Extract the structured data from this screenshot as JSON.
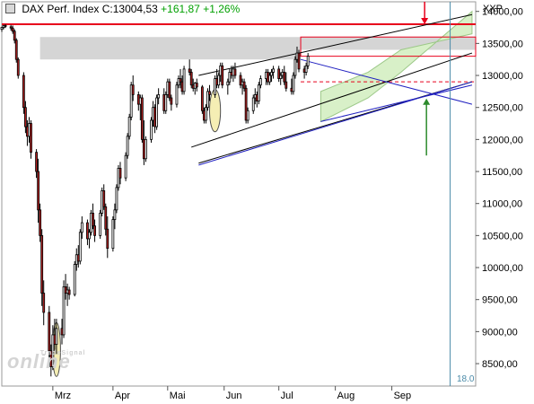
{
  "header": {
    "index_name": "DAX Perf. Index",
    "close": "C:13004,53",
    "change": "+161,87",
    "change_pct": "+1,26%"
  },
  "unit_label": "XXP",
  "watermark": "online",
  "watermark_small": "TradeSignal",
  "vline_label": "18.0",
  "colors": {
    "resistance": "#e8001c",
    "channel_fill": "#d8f0c8",
    "trend_blue": "#2020c0",
    "arrow_green": "#2c8a2c",
    "zone_gray": "#d0d0d0",
    "highlight": "#f5eeb0",
    "vline": "#4a8aa8"
  },
  "chart_data": {
    "type": "candlestick",
    "title": "DAX Perf. Index",
    "ylim": [
      8150,
      14150
    ],
    "y_ticks": [
      8500,
      9000,
      9500,
      10000,
      10500,
      11000,
      11500,
      12000,
      12500,
      13000,
      13500,
      14000
    ],
    "y_tick_labels": [
      "8500,00",
      "9000,00",
      "9500,00",
      "10000,00",
      "10500,00",
      "11000,00",
      "11500,00",
      "12000,00",
      "12500,00",
      "13000,00",
      "13500,00",
      "14000,00"
    ],
    "x_labels": [
      {
        "label": "Mrz",
        "day": 28
      },
      {
        "label": "Apr",
        "day": 61
      },
      {
        "label": "Mai",
        "day": 91
      },
      {
        "label": "Jun",
        "day": 122
      },
      {
        "label": "Jul",
        "day": 152
      },
      {
        "label": "Aug",
        "day": 183
      },
      {
        "label": "Sep",
        "day": 214
      }
    ],
    "x_range_days": [
      0,
      260
    ],
    "resistance": 13800,
    "gray_zone": [
      13250,
      13600
    ],
    "gray_zone_right": [
      13400,
      13600
    ],
    "red_box_level": 13300,
    "dashed_support": 12900,
    "vline_day": 246,
    "candles": [
      [
        0,
        13720,
        13760,
        13680,
        13750
      ],
      [
        1,
        13750,
        13790,
        13720,
        13780
      ],
      [
        2,
        13780,
        13800,
        13740,
        13770
      ],
      [
        5,
        13760,
        13790,
        13700,
        13740
      ],
      [
        6,
        13740,
        13780,
        13650,
        13690
      ],
      [
        7,
        13690,
        13720,
        13500,
        13550
      ],
      [
        8,
        13550,
        13580,
        13200,
        13250
      ],
      [
        9,
        13250,
        13280,
        12950,
        13000
      ],
      [
        12,
        13000,
        13050,
        12400,
        12500
      ],
      [
        13,
        12500,
        12600,
        12100,
        12200
      ],
      [
        14,
        12200,
        12300,
        11900,
        12050
      ],
      [
        15,
        12050,
        12350,
        11950,
        12250
      ],
      [
        16,
        12250,
        12300,
        11700,
        11800
      ],
      [
        19,
        11800,
        11850,
        11400,
        11500
      ],
      [
        20,
        11500,
        11700,
        10700,
        10900
      ],
      [
        21,
        10900,
        11000,
        10400,
        10500
      ],
      [
        22,
        10500,
        10600,
        9400,
        9600
      ],
      [
        23,
        9600,
        9800,
        9100,
        9300
      ],
      [
        26,
        9300,
        9400,
        8500,
        8700
      ],
      [
        27,
        8700,
        8800,
        8300,
        8450
      ],
      [
        28,
        8450,
        9100,
        8400,
        8950
      ],
      [
        29,
        8950,
        9200,
        8700,
        8800
      ],
      [
        30,
        8800,
        9200,
        8650,
        9050
      ],
      [
        33,
        9050,
        9200,
        8800,
        8950
      ],
      [
        34,
        8950,
        9800,
        8900,
        9700
      ],
      [
        35,
        9700,
        9900,
        9500,
        9600
      ],
      [
        36,
        9600,
        9750,
        9400,
        9650
      ],
      [
        37,
        9650,
        9700,
        9500,
        9580
      ],
      [
        40,
        9580,
        10100,
        9550,
        10050
      ],
      [
        41,
        10050,
        10300,
        9950,
        10200
      ],
      [
        42,
        10200,
        10350,
        10000,
        10100
      ],
      [
        43,
        10100,
        10600,
        10050,
        10550
      ],
      [
        44,
        10550,
        10800,
        10450,
        10700
      ],
      [
        47,
        10700,
        10750,
        10350,
        10450
      ],
      [
        48,
        10450,
        10600,
        10300,
        10550
      ],
      [
        49,
        10550,
        10900,
        10500,
        10850
      ],
      [
        50,
        10850,
        11000,
        10600,
        10650
      ],
      [
        51,
        10650,
        10750,
        10400,
        10500
      ],
      [
        54,
        10500,
        10900,
        10450,
        10850
      ],
      [
        55,
        10850,
        11250,
        10800,
        11200
      ],
      [
        56,
        11200,
        11300,
        10900,
        10950
      ],
      [
        57,
        10950,
        11000,
        10500,
        10600
      ],
      [
        58,
        10600,
        10800,
        10150,
        10300
      ],
      [
        61,
        10300,
        10800,
        10250,
        10750
      ],
      [
        62,
        10750,
        11000,
        10600,
        10900
      ],
      [
        63,
        10900,
        11300,
        10850,
        11250
      ],
      [
        64,
        11250,
        11600,
        11200,
        11550
      ],
      [
        65,
        11550,
        11650,
        11300,
        11400
      ],
      [
        68,
        11400,
        11800,
        11350,
        11750
      ],
      [
        69,
        11750,
        12100,
        11700,
        12050
      ],
      [
        70,
        12050,
        12400,
        12000,
        12350
      ],
      [
        71,
        12350,
        12900,
        12300,
        12850
      ],
      [
        72,
        12850,
        13000,
        12600,
        12700
      ],
      [
        75,
        12700,
        12750,
        12450,
        12550
      ],
      [
        76,
        12550,
        12700,
        12300,
        12650
      ],
      [
        77,
        12650,
        12700,
        11950,
        12000
      ],
      [
        78,
        12000,
        12300,
        11600,
        11700
      ],
      [
        79,
        11700,
        12050,
        11650,
        12000
      ],
      [
        82,
        12000,
        12350,
        11950,
        12300
      ],
      [
        83,
        12300,
        12600,
        12200,
        12500
      ],
      [
        84,
        12500,
        12550,
        12100,
        12200
      ],
      [
        85,
        12200,
        12700,
        12150,
        12650
      ],
      [
        86,
        12650,
        12800,
        12550,
        12700
      ],
      [
        89,
        12700,
        12800,
        12400,
        12450
      ],
      [
        90,
        12450,
        12750,
        12400,
        12700
      ],
      [
        91,
        12700,
        12950,
        12650,
        12900
      ],
      [
        92,
        12900,
        12950,
        12600,
        12650
      ],
      [
        93,
        12650,
        12700,
        12450,
        12550
      ],
      [
        96,
        12550,
        12900,
        12500,
        12850
      ],
      [
        97,
        12850,
        13000,
        12800,
        12950
      ],
      [
        98,
        12950,
        13100,
        12800,
        12900
      ],
      [
        99,
        12900,
        13000,
        12700,
        12750
      ],
      [
        100,
        12750,
        13150,
        12700,
        13100
      ],
      [
        103,
        13100,
        13250,
        13000,
        13050
      ],
      [
        104,
        13050,
        13100,
        12800,
        12850
      ],
      [
        105,
        12850,
        12950,
        12750,
        12800
      ],
      [
        106,
        12800,
        12900,
        12700,
        12880
      ],
      [
        107,
        12880,
        12950,
        12750,
        12820
      ],
      [
        110,
        12820,
        12850,
        12400,
        12450
      ],
      [
        111,
        12450,
        12500,
        12250,
        12300
      ],
      [
        112,
        12300,
        12550,
        12250,
        12500
      ],
      [
        113,
        12500,
        12800,
        12450,
        12750
      ],
      [
        114,
        12750,
        12850,
        12600,
        12700
      ],
      [
        117,
        12700,
        13000,
        12650,
        12950
      ],
      [
        118,
        12950,
        13100,
        12800,
        12850
      ],
      [
        119,
        12850,
        13050,
        12800,
        13000
      ],
      [
        120,
        13000,
        13200,
        12900,
        13150
      ],
      [
        121,
        13150,
        13200,
        12800,
        12850
      ],
      [
        124,
        12850,
        12950,
        12700,
        12900
      ],
      [
        125,
        12900,
        13100,
        12850,
        13050
      ],
      [
        126,
        13050,
        13150,
        12950,
        13000
      ],
      [
        127,
        13000,
        13150,
        12900,
        13100
      ],
      [
        128,
        13100,
        13200,
        12950,
        13000
      ],
      [
        131,
        13000,
        13050,
        12800,
        12850
      ],
      [
        132,
        12850,
        12950,
        12700,
        12900
      ],
      [
        133,
        12900,
        12950,
        12750,
        12800
      ],
      [
        134,
        12800,
        12850,
        12250,
        12300
      ],
      [
        135,
        12300,
        12500,
        12250,
        12450
      ],
      [
        138,
        12450,
        12700,
        12400,
        12650
      ],
      [
        139,
        12650,
        12800,
        12550,
        12700
      ],
      [
        140,
        12700,
        12750,
        12500,
        12600
      ],
      [
        141,
        12600,
        12900,
        12550,
        12850
      ],
      [
        142,
        12850,
        13000,
        12800,
        12950
      ],
      [
        145,
        12950,
        13100,
        12850,
        13050
      ],
      [
        146,
        13050,
        13100,
        12850,
        12900
      ],
      [
        147,
        12900,
        13050,
        12850,
        13000
      ],
      [
        148,
        13000,
        13100,
        12900,
        13050
      ],
      [
        149,
        13050,
        13150,
        12950,
        13100
      ],
      [
        152,
        13100,
        13150,
        12900,
        12950
      ],
      [
        153,
        12950,
        13050,
        12850,
        13000
      ],
      [
        154,
        13000,
        13100,
        12950,
        13050
      ],
      [
        155,
        13050,
        13150,
        12850,
        12900
      ],
      [
        156,
        12900,
        13050,
        12750,
        12800
      ],
      [
        159,
        12800,
        12950,
        12700,
        12750
      ],
      [
        160,
        12750,
        13050,
        12700,
        13000
      ],
      [
        161,
        13000,
        13300,
        12950,
        13250
      ],
      [
        162,
        13250,
        13450,
        13200,
        13350
      ],
      [
        163,
        13350,
        13400,
        13050,
        13100
      ],
      [
        166,
        13100,
        13150,
        12950,
        13050
      ],
      [
        167,
        13050,
        13200,
        13000,
        13150
      ],
      [
        168,
        13150,
        13350,
        13100,
        13300
      ]
    ],
    "channel_poly": [
      [
        175,
        12280
      ],
      [
        201,
        12650
      ],
      [
        219,
        13050
      ],
      [
        258,
        14000
      ],
      [
        258,
        13650
      ],
      [
        219,
        13400
      ],
      [
        201,
        13050
      ],
      [
        175,
        12750
      ]
    ],
    "trend_black": [
      [
        [
          108,
          13000
        ],
        [
          258,
          13950
        ]
      ],
      [
        [
          104,
          11880
        ],
        [
          258,
          13350
        ]
      ],
      [
        [
          108,
          11630
        ],
        [
          258,
          12900
        ]
      ]
    ],
    "trend_blue": [
      [
        [
          108,
          11600
        ],
        [
          258,
          12900
        ]
      ],
      [
        [
          164,
          13250
        ],
        [
          258,
          12550
        ]
      ],
      [
        [
          175,
          12280
        ],
        [
          258,
          12850
        ]
      ]
    ],
    "red_arrow_day": 232,
    "green_arrow_day": 233,
    "green_arrow_value": 12640,
    "highlight_ellipses": [
      {
        "cx_day": 30,
        "cy_value": 8720,
        "rx_days": 2.2,
        "ry_value": 420
      },
      {
        "cx_day": 117,
        "cy_value": 12450,
        "rx_days": 3.0,
        "ry_value": 330
      }
    ]
  }
}
